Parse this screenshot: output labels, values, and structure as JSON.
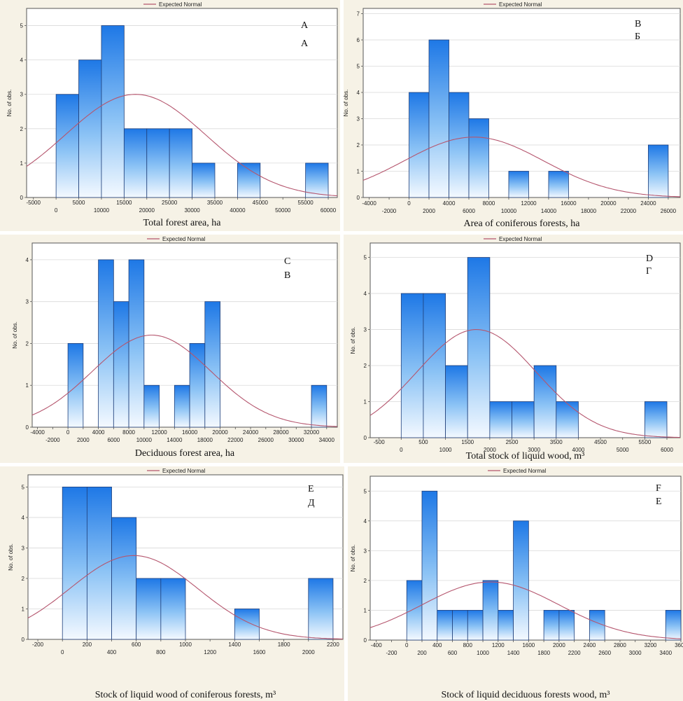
{
  "legend_label": "Expected Normal",
  "y_axis_label": "No. of obs.",
  "chart_data": [
    {
      "type": "bar",
      "xlabel": "Total forest area, ha",
      "letters": [
        "A",
        "А"
      ],
      "bin_edges": [
        0,
        5000,
        10000,
        15000,
        20000,
        25000,
        30000,
        35000,
        40000,
        45000,
        50000,
        55000,
        60000
      ],
      "values": [
        3,
        4,
        5,
        2,
        2,
        2,
        1,
        0,
        1,
        0,
        0,
        1
      ],
      "xlim": [
        -6500,
        62000
      ],
      "ylim": [
        0,
        5.5
      ],
      "xticks": [
        -5000,
        0,
        5000,
        10000,
        15000,
        20000,
        25000,
        30000,
        35000,
        40000,
        45000,
        50000,
        55000,
        60000
      ],
      "yticks": [
        0,
        1,
        2,
        3,
        4,
        5
      ],
      "normal": {
        "mean": 17500,
        "sd": 15500,
        "peak": 3.0
      }
    },
    {
      "type": "bar",
      "xlabel": "Area of coniferous forests, ha",
      "letters": [
        "B",
        "Б"
      ],
      "bin_edges": [
        0,
        2000,
        4000,
        6000,
        8000,
        10000,
        12000,
        14000,
        16000,
        18000,
        20000,
        22000,
        24000,
        26000
      ],
      "values": [
        4,
        6,
        4,
        3,
        0,
        1,
        0,
        1,
        0,
        0,
        0,
        0,
        2
      ],
      "xlim": [
        -4600,
        27200
      ],
      "ylim": [
        0,
        7.2
      ],
      "xticks": [
        -4000,
        -2000,
        0,
        2000,
        4000,
        6000,
        8000,
        10000,
        12000,
        14000,
        16000,
        18000,
        20000,
        22000,
        24000,
        26000
      ],
      "yticks": [
        0,
        1,
        2,
        3,
        4,
        5,
        6,
        7
      ],
      "normal": {
        "mean": 6500,
        "sd": 7000,
        "peak": 2.3
      }
    },
    {
      "type": "bar",
      "xlabel": "Deciduous forest area, ha",
      "letters": [
        "C",
        "В"
      ],
      "bin_edges": [
        0,
        2000,
        4000,
        6000,
        8000,
        10000,
        12000,
        14000,
        16000,
        18000,
        20000,
        22000,
        24000,
        26000,
        28000,
        30000,
        32000,
        34000
      ],
      "values": [
        2,
        0,
        4,
        3,
        4,
        1,
        0,
        1,
        2,
        3,
        0,
        0,
        0,
        0,
        0,
        0,
        1
      ],
      "xlim": [
        -4700,
        35400
      ],
      "ylim": [
        0,
        4.4
      ],
      "xticks": [
        -4000,
        -2000,
        0,
        2000,
        4000,
        6000,
        8000,
        10000,
        12000,
        14000,
        16000,
        18000,
        20000,
        22000,
        24000,
        26000,
        28000,
        30000,
        32000,
        34000
      ],
      "yticks": [
        0,
        1,
        2,
        3,
        4
      ],
      "normal": {
        "mean": 11000,
        "sd": 7800,
        "peak": 2.2
      }
    },
    {
      "type": "bar",
      "xlabel": "Total stock of liquid wood, m³",
      "letters": [
        "D",
        "Г"
      ],
      "bin_edges": [
        0,
        500,
        1000,
        1500,
        2000,
        2500,
        3000,
        3500,
        4000,
        4500,
        5000,
        5500,
        6000
      ],
      "values": [
        4,
        4,
        2,
        5,
        1,
        1,
        2,
        1,
        0,
        0,
        0,
        1
      ],
      "xlim": [
        -700,
        6300
      ],
      "ylim": [
        0,
        5.4
      ],
      "xticks": [
        -500,
        0,
        500,
        1000,
        1500,
        2000,
        2500,
        3000,
        3500,
        4000,
        4500,
        5000,
        5500,
        6000
      ],
      "yticks": [
        0,
        1,
        2,
        3,
        4,
        5
      ],
      "normal": {
        "mean": 1700,
        "sd": 1350,
        "peak": 3.0
      }
    },
    {
      "type": "bar",
      "xlabel": "Stock of liquid wood of coniferous forests, m³",
      "letters": [
        "E",
        "Д"
      ],
      "bin_edges": [
        0,
        200,
        400,
        600,
        800,
        1000,
        1200,
        1400,
        1600,
        1800,
        2000,
        2200
      ],
      "values": [
        5,
        5,
        4,
        2,
        2,
        0,
        0,
        1,
        0,
        0,
        2
      ],
      "xlim": [
        -280,
        2280
      ],
      "ylim": [
        0,
        5.4
      ],
      "xticks": [
        -200,
        0,
        200,
        400,
        600,
        800,
        1000,
        1200,
        1400,
        1600,
        1800,
        2000,
        2200
      ],
      "yticks": [
        0,
        1,
        2,
        3,
        4,
        5
      ],
      "normal": {
        "mean": 580,
        "sd": 520,
        "peak": 2.75
      }
    },
    {
      "type": "bar",
      "xlabel": "Stock of liquid deciduous forests wood, m³",
      "letters": [
        "F",
        "Е"
      ],
      "bin_edges": [
        0,
        200,
        400,
        600,
        800,
        1000,
        1200,
        1400,
        1600,
        1800,
        2000,
        2200,
        2400,
        2600,
        2800,
        3000,
        3200,
        3400,
        3600
      ],
      "values": [
        2,
        5,
        1,
        1,
        1,
        2,
        1,
        4,
        0,
        1,
        1,
        0,
        1,
        0,
        0,
        0,
        0,
        1
      ],
      "xlim": [
        -480,
        3600
      ],
      "ylim": [
        0,
        5.5
      ],
      "xticks": [
        -400,
        -200,
        0,
        200,
        400,
        600,
        800,
        1000,
        1200,
        1400,
        1600,
        1800,
        2000,
        2200,
        2400,
        2600,
        2800,
        3000,
        3200,
        3400,
        3600
      ],
      "yticks": [
        0,
        1,
        2,
        3,
        4,
        5
      ],
      "normal": {
        "mean": 1100,
        "sd": 900,
        "peak": 1.95
      }
    }
  ]
}
